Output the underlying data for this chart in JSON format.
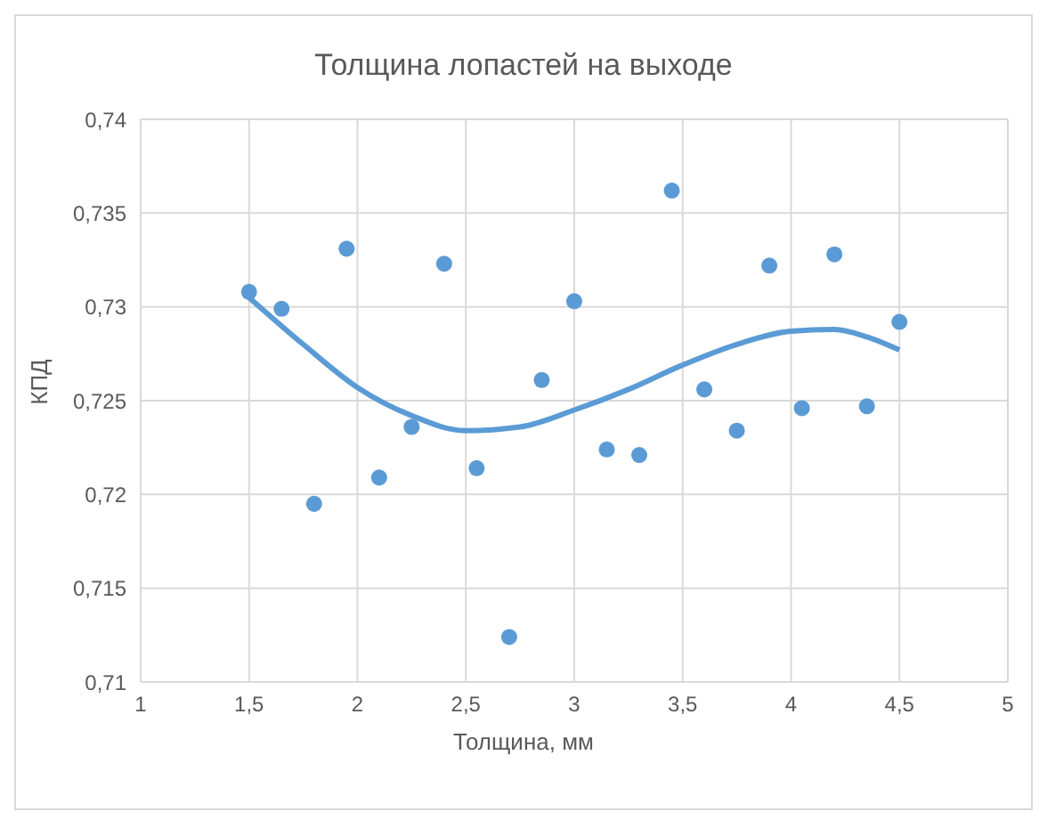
{
  "chart_data": {
    "type": "scatter",
    "title": "Толщина лопастей на выходе",
    "xlabel": "Толщина, мм",
    "ylabel": "КПД",
    "xlim": [
      1,
      5
    ],
    "xticks": [
      {
        "value": 1,
        "label": "1"
      },
      {
        "value": 1.5,
        "label": "1,5"
      },
      {
        "value": 2,
        "label": "2"
      },
      {
        "value": 2.5,
        "label": "2,5"
      },
      {
        "value": 3,
        "label": "3"
      },
      {
        "value": 3.5,
        "label": "3,5"
      },
      {
        "value": 4,
        "label": "4"
      },
      {
        "value": 4.5,
        "label": "4,5"
      },
      {
        "value": 5,
        "label": "5"
      }
    ],
    "ylim": [
      0.71,
      0.74
    ],
    "yticks": [
      {
        "value": 0.71,
        "label": "0,71"
      },
      {
        "value": 0.715,
        "label": "0,715"
      },
      {
        "value": 0.72,
        "label": "0,72"
      },
      {
        "value": 0.725,
        "label": "0,725"
      },
      {
        "value": 0.73,
        "label": "0,73"
      },
      {
        "value": 0.735,
        "label": "0,735"
      },
      {
        "value": 0.74,
        "label": "0,74"
      }
    ],
    "grid": true,
    "marker": "circle",
    "series": [
      {
        "color": "#5b9bd5",
        "x": [
          1.5,
          1.65,
          1.8,
          1.95,
          2.1,
          2.25,
          2.4,
          2.55,
          2.7,
          2.85,
          3.0,
          3.15,
          3.3,
          3.45,
          3.6,
          3.75,
          3.9,
          4.05,
          4.2,
          4.35,
          4.5
        ],
        "values": [
          0.7308,
          0.7299,
          0.7195,
          0.7331,
          0.7209,
          0.7236,
          0.7323,
          0.7214,
          0.7124,
          0.7261,
          0.7303,
          0.7224,
          0.7221,
          0.7362,
          0.7256,
          0.7234,
          0.7322,
          0.7246,
          0.7328,
          0.7247,
          0.7292
        ]
      },
      {
        "type": "line",
        "color": "#5b9bd5",
        "marker": "none",
        "x": [
          1.5,
          1.75,
          2.0,
          2.25,
          2.5,
          2.75,
          3.0,
          3.25,
          3.5,
          3.75,
          4.0,
          4.2,
          4.35,
          4.5
        ],
        "values": [
          0.7305,
          0.728,
          0.7257,
          0.7242,
          0.7234,
          0.7236,
          0.7245,
          0.7256,
          0.7269,
          0.728,
          0.7287,
          0.7288,
          0.7284,
          0.7277
        ]
      }
    ]
  }
}
